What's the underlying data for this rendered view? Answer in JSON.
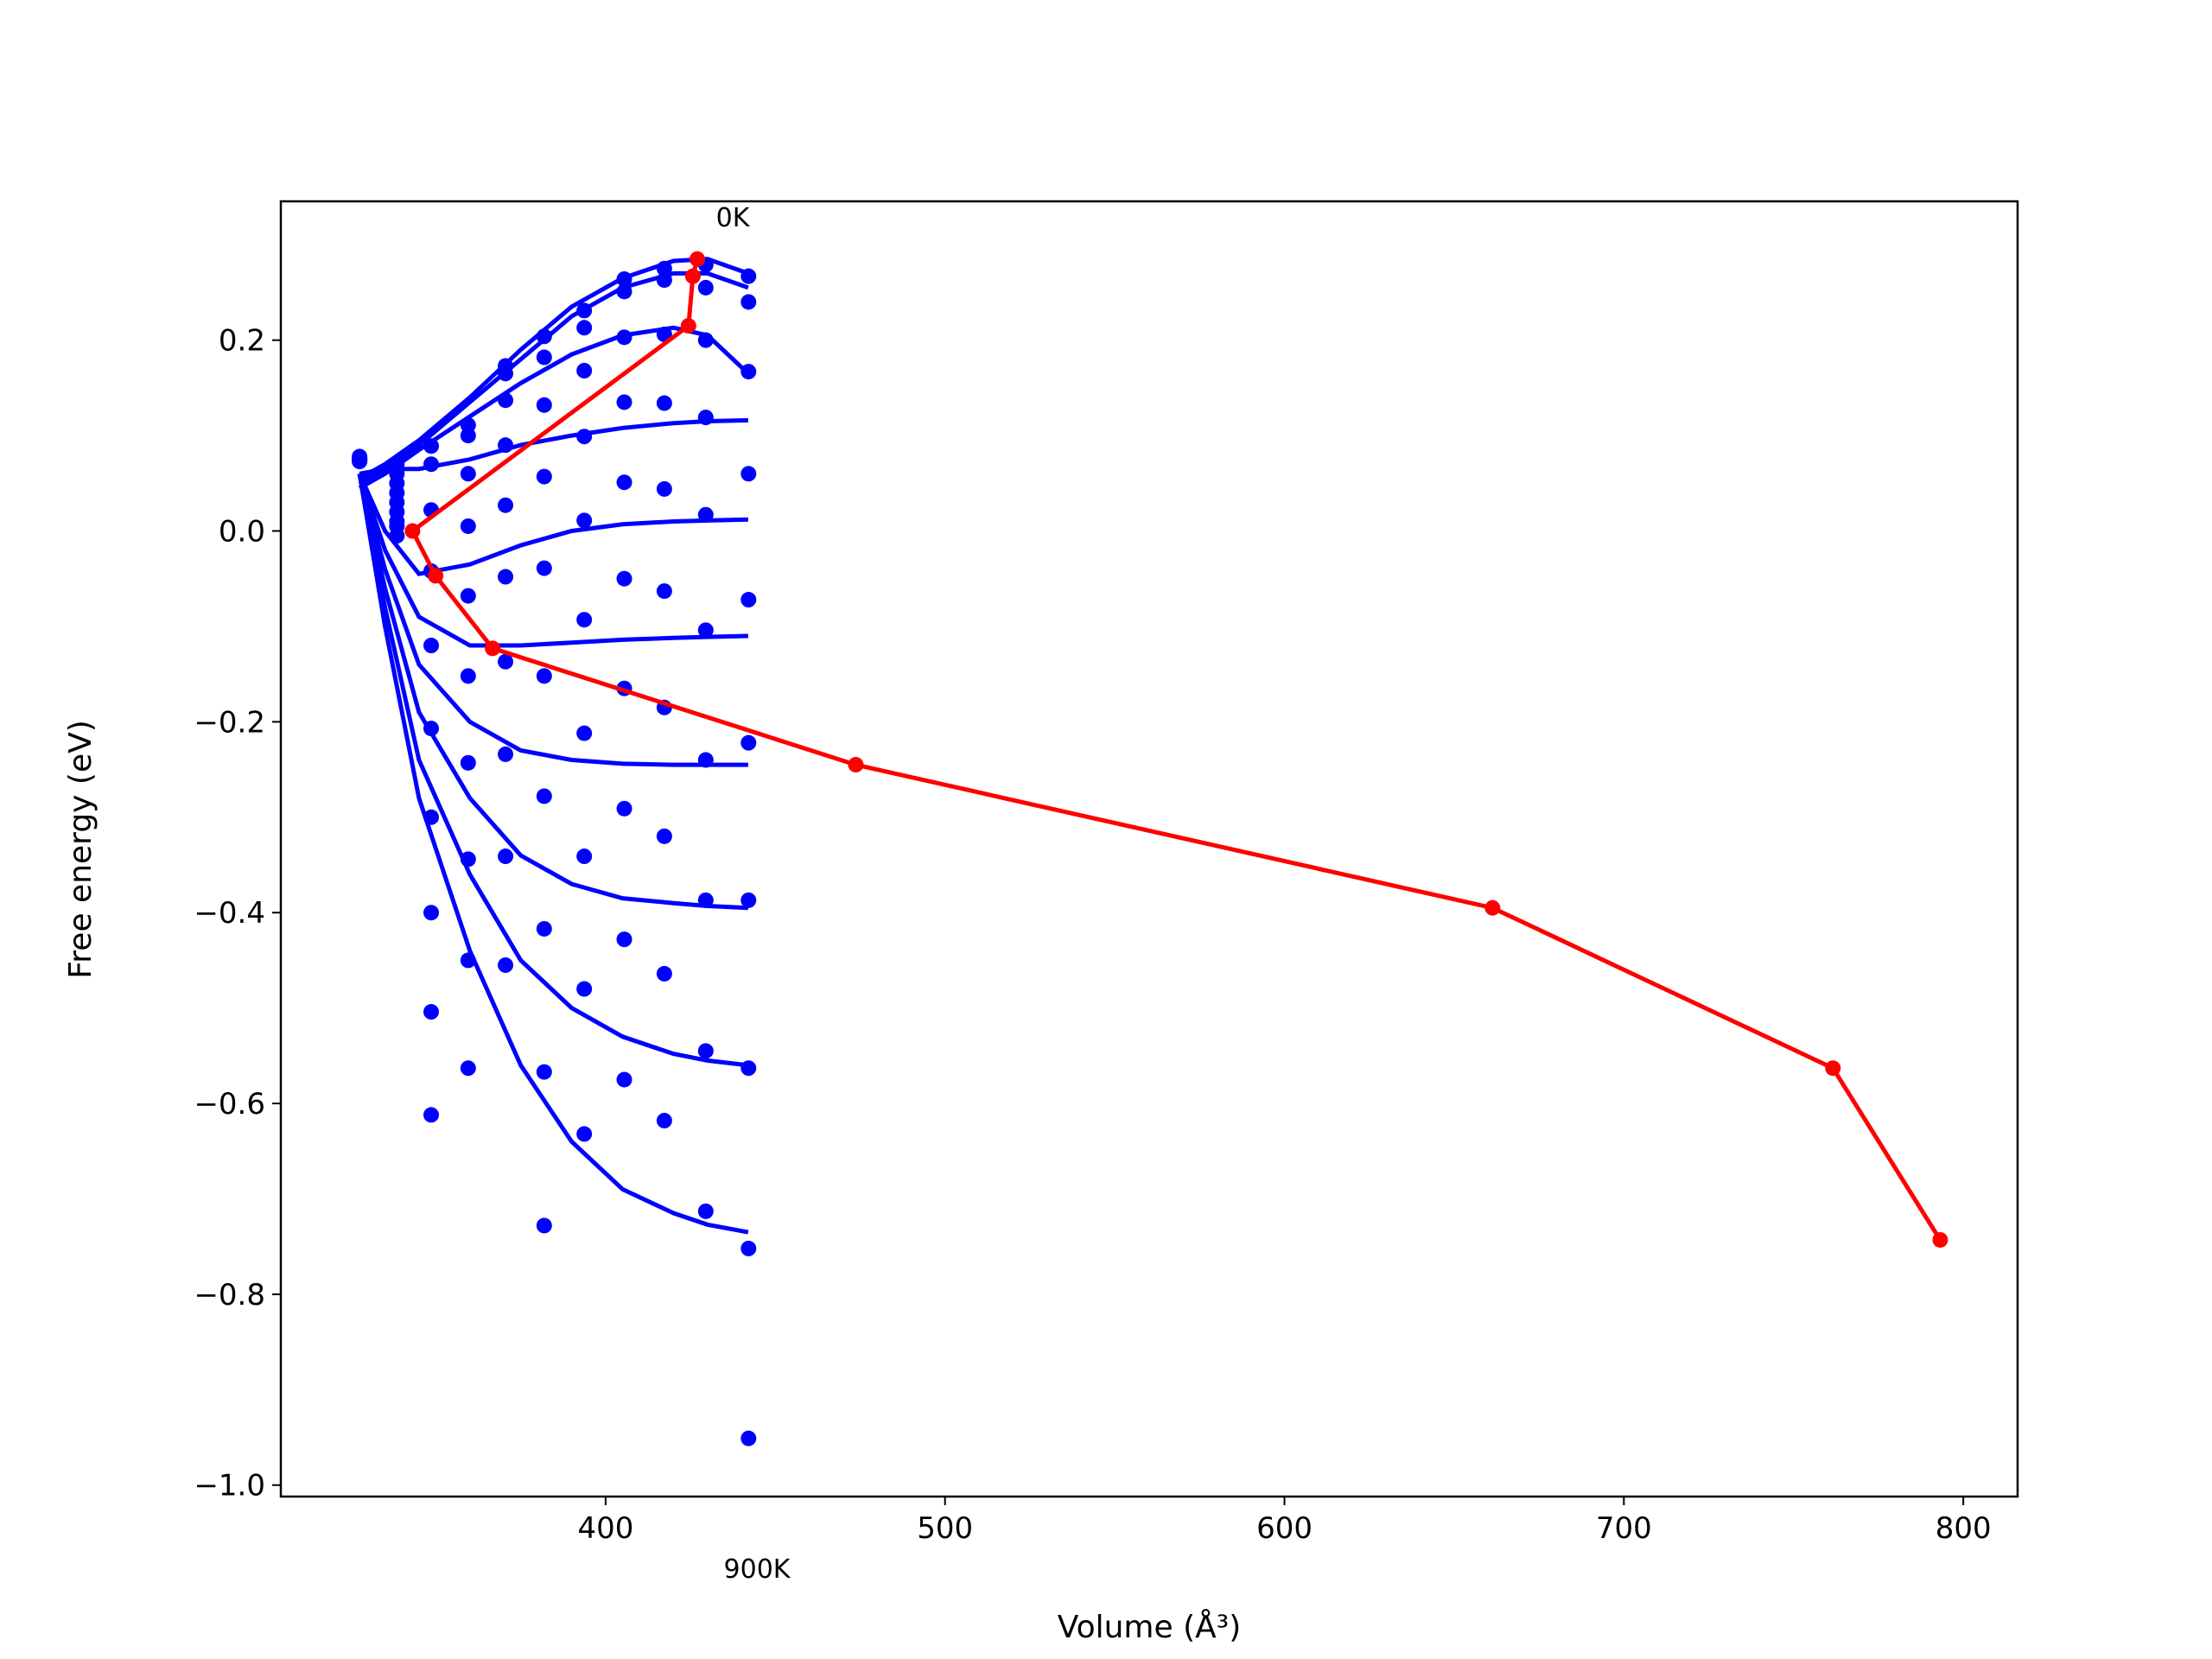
{
  "chart_data": {
    "type": "scatter",
    "xlabel": "Volume (Å³)",
    "ylabel": "Free energy (eV)",
    "xlim": [
      304.3,
      816
    ],
    "ylim": [
      -1.012,
      0.3455
    ],
    "xticks": [
      400,
      500,
      600,
      700,
      800
    ],
    "yticks": [
      {
        "value": -1.0,
        "label": "−1.0"
      },
      {
        "value": -0.8,
        "label": "−0.8"
      },
      {
        "value": -0.6,
        "label": "−0.6"
      },
      {
        "value": -0.4,
        "label": "−0.4"
      },
      {
        "value": -0.2,
        "label": "−0.2"
      },
      {
        "value": 0.0,
        "label": "0.0"
      },
      0.2
    ],
    "annotations": [
      "0K",
      "900K"
    ],
    "point_color": "#0000ff",
    "point_x": [
      327.5,
      338.5,
      348.6,
      359.5,
      370.5,
      381.9,
      393.7,
      405.5,
      417.3,
      429.5,
      442.1
    ],
    "series": [
      {
        "values": [
          0.078,
          0.07,
          0.089,
          0.111,
          0.173,
          0.204,
          0.231,
          0.264,
          0.275,
          0.279,
          0.267
        ]
      },
      {
        "values": [
          0.077,
          0.065,
          0.07,
          0.1,
          0.165,
          0.182,
          0.213,
          0.251,
          0.263,
          0.255,
          0.24
        ]
      },
      {
        "values": [
          0.076,
          0.06,
          0.022,
          0.06,
          0.137,
          0.132,
          0.168,
          0.203,
          0.206,
          0.2,
          0.167
        ]
      },
      {
        "values": [
          0.075,
          0.05,
          -0.042,
          0.005,
          0.09,
          0.057,
          0.099,
          0.135,
          0.134,
          0.119,
          0.06
        ]
      },
      {
        "values": [
          0.075,
          0.04,
          -0.12,
          -0.068,
          0.027,
          -0.039,
          0.011,
          0.051,
          0.044,
          0.017,
          -0.072
        ]
      },
      {
        "values": [
          0.075,
          0.03,
          -0.207,
          -0.152,
          -0.048,
          -0.152,
          -0.093,
          -0.05,
          -0.063,
          -0.104,
          -0.222
        ]
      },
      {
        "values": [
          0.074,
          0.02,
          -0.3,
          -0.243,
          -0.137,
          -0.278,
          -0.212,
          -0.165,
          -0.185,
          -0.24,
          -0.387
        ]
      },
      {
        "values": [
          0.074,
          0.01,
          -0.4,
          -0.344,
          -0.234,
          -0.417,
          -0.341,
          -0.291,
          -0.32,
          -0.387,
          -0.563
        ]
      },
      {
        "values": [
          0.073,
          0.005,
          -0.504,
          -0.45,
          -0.341,
          -0.567,
          -0.48,
          -0.428,
          -0.464,
          -0.545,
          -0.752
        ]
      },
      {
        "values": [
          0.073,
          -0.005,
          -0.612,
          -0.563,
          -0.455,
          -0.728,
          -0.632,
          -0.575,
          -0.618,
          -0.713,
          -0.951
        ]
      }
    ],
    "curve_color": "#0000ff",
    "curve_x": [
      327.5,
      335,
      345,
      360,
      375,
      390,
      405,
      420,
      430,
      442
    ],
    "curves": [
      {
        "values": [
          0.055,
          0.07,
          0.095,
          0.14,
          0.19,
          0.235,
          0.265,
          0.283,
          0.285,
          0.27
        ]
      },
      {
        "values": [
          0.05,
          0.065,
          0.09,
          0.135,
          0.18,
          0.225,
          0.255,
          0.27,
          0.27,
          0.255
        ]
      },
      {
        "values": [
          0.045,
          0.06,
          0.085,
          0.12,
          0.155,
          0.185,
          0.205,
          0.213,
          0.205,
          0.165
        ]
      },
      {
        "values": [
          0.06,
          0.065,
          0.065,
          0.075,
          0.09,
          0.1,
          0.108,
          0.113,
          0.115,
          0.116
        ]
      },
      {
        "values": [
          0.06,
          0.0,
          -0.045,
          -0.035,
          -0.015,
          0.0,
          0.007,
          0.01,
          0.011,
          0.012
        ]
      },
      {
        "values": [
          0.06,
          -0.02,
          -0.09,
          -0.12,
          -0.12,
          -0.117,
          -0.114,
          -0.112,
          -0.111,
          -0.11
        ]
      },
      {
        "values": [
          0.06,
          -0.04,
          -0.14,
          -0.2,
          -0.23,
          -0.24,
          -0.244,
          -0.245,
          -0.245,
          -0.245
        ]
      },
      {
        "values": [
          0.06,
          -0.06,
          -0.19,
          -0.28,
          -0.34,
          -0.37,
          -0.385,
          -0.39,
          -0.393,
          -0.395
        ]
      },
      {
        "values": [
          0.06,
          -0.08,
          -0.24,
          -0.36,
          -0.45,
          -0.5,
          -0.53,
          -0.548,
          -0.555,
          -0.56
        ]
      },
      {
        "values": [
          0.06,
          -0.1,
          -0.28,
          -0.44,
          -0.56,
          -0.64,
          -0.69,
          -0.715,
          -0.727,
          -0.735
        ]
      }
    ],
    "minimum_path": {
      "color": "#ff0000",
      "x": [
        427.0,
        425.7,
        424.4,
        343.1,
        349.9,
        366.7,
        473.7,
        661.3,
        761.6,
        793.2
      ],
      "values": [
        0.285,
        0.267,
        0.215,
        0.0,
        -0.047,
        -0.123,
        -0.245,
        -0.395,
        -0.563,
        -0.743
      ]
    }
  }
}
